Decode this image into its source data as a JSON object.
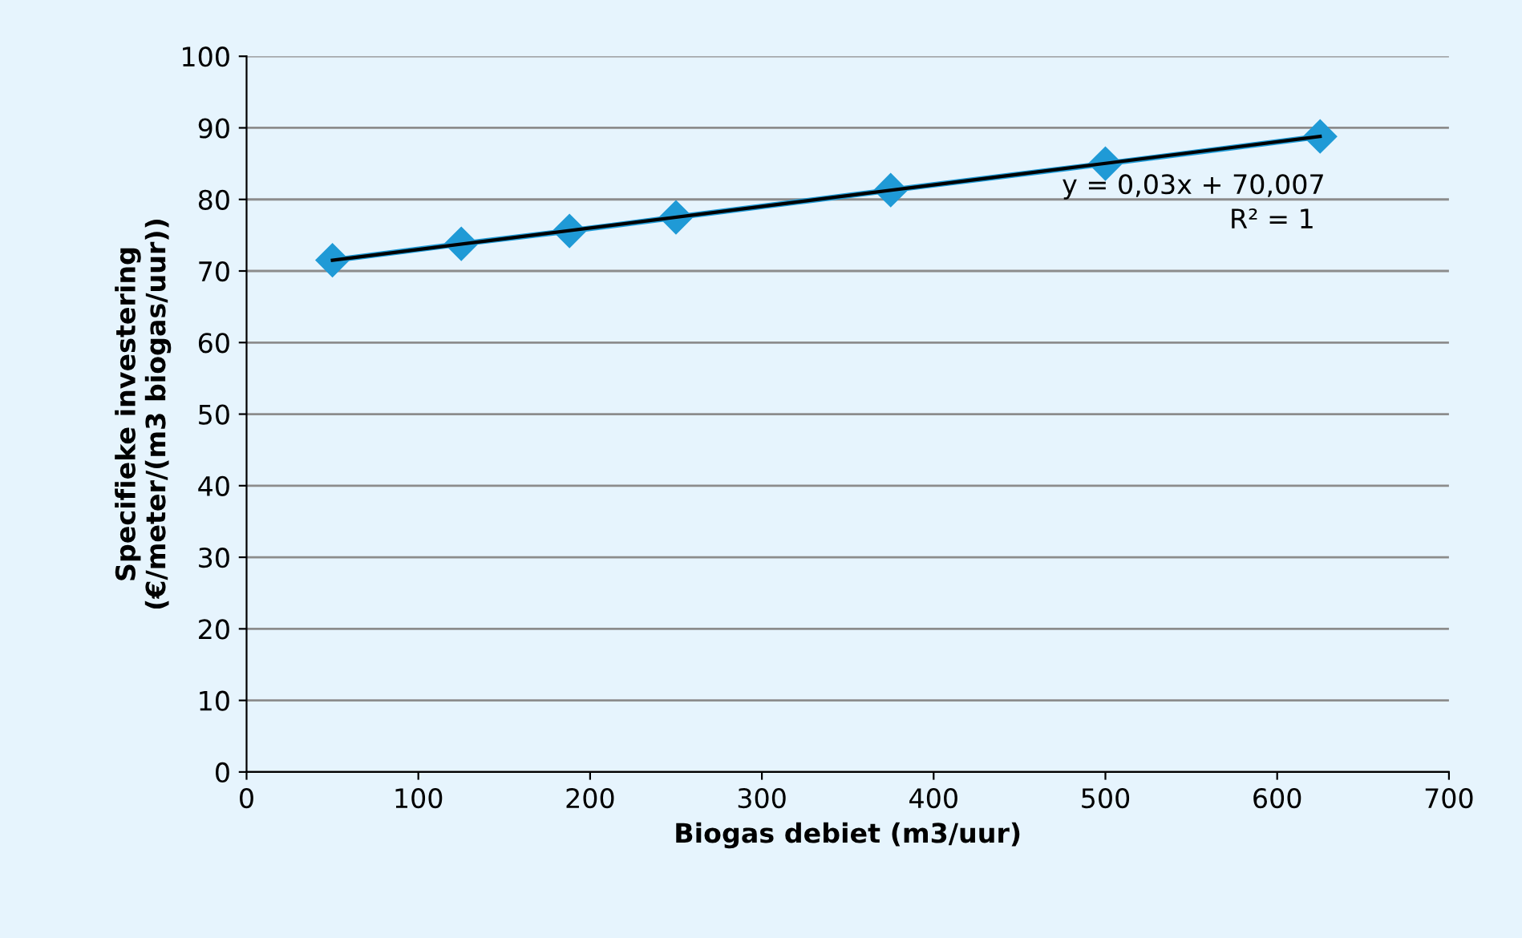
{
  "chart_data": {
    "type": "line",
    "xlabel": "Biogas debiet (m3/uur)",
    "ylabel": "Specifieke investering\n(€/meter/(m3 biogas/uur))",
    "series": [
      {
        "color": "#1f9ad6",
        "x": [
          50,
          125,
          188,
          250,
          375,
          500,
          625
        ],
        "values": [
          71.5,
          73.8,
          75.6,
          77.5,
          81.3,
          85.0,
          88.8
        ],
        "marker": "diamond"
      },
      {
        "type": "line",
        "color": "#000000",
        "x": [
          50,
          625
        ],
        "values": [
          71.5,
          88.8
        ],
        "marker": "none"
      }
    ],
    "annotations": [
      "y = 0,03x + 70,007",
      "R² = 1"
    ],
    "xlim": [
      0,
      700
    ],
    "xticks": [
      0,
      100,
      200,
      300,
      400,
      500,
      600,
      700
    ],
    "ylim": [
      0,
      100
    ],
    "yticks": [
      0,
      10,
      20,
      30,
      40,
      50,
      60,
      70,
      80,
      90,
      100
    ],
    "grid": "y",
    "legend": false
  }
}
